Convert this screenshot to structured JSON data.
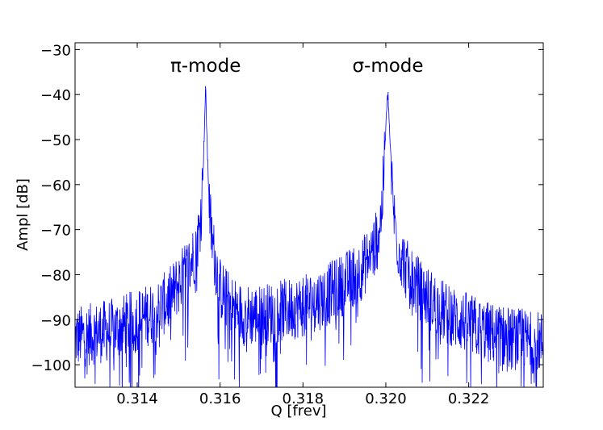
{
  "chart_data": {
    "type": "line",
    "title": "",
    "xlabel": "Q [frev]",
    "ylabel": "Ampl [dB]",
    "xlim": [
      0.3125,
      0.3238
    ],
    "ylim": [
      -105,
      -28.5
    ],
    "x_ticks": [
      0.314,
      0.316,
      0.318,
      0.32,
      0.322
    ],
    "x_tick_labels": [
      "0.314",
      "0.316",
      "0.318",
      "0.320",
      "0.322"
    ],
    "y_ticks": [
      -30,
      -40,
      -50,
      -60,
      -70,
      -80,
      -90,
      -100
    ],
    "y_tick_labels": [
      "−30",
      "−40",
      "−50",
      "−60",
      "−70",
      "−80",
      "−90",
      "−100"
    ],
    "grid": false,
    "legend": "none",
    "line_color": "#0000ff",
    "annotations": [
      {
        "text": "π-mode",
        "x": 0.31565,
        "y": -33.5
      },
      {
        "text": "σ-mode",
        "x": 0.32005,
        "y": -33.5
      }
    ],
    "series": [
      {
        "x": [
          0.3125,
          0.313,
          0.3135,
          0.314,
          0.3145,
          0.3148,
          0.315,
          0.3152,
          0.3154,
          0.3155,
          0.31555,
          0.3156,
          0.31565,
          0.3157,
          0.31575,
          0.3158,
          0.3159,
          0.316,
          0.3162,
          0.3164,
          0.3166,
          0.317,
          0.3175,
          0.318,
          0.3185,
          0.319,
          0.3194,
          0.3196,
          0.3198,
          0.3199,
          0.31995,
          0.32,
          0.32005,
          0.3201,
          0.32015,
          0.3202,
          0.3203,
          0.3205,
          0.3207,
          0.321,
          0.3215,
          0.322,
          0.3225,
          0.323,
          0.3235,
          0.3238
        ],
        "y": [
          -94,
          -93,
          -92,
          -90,
          -88,
          -85,
          -82,
          -79,
          -75,
          -70,
          -65,
          -54,
          -38.5,
          -55,
          -66,
          -72,
          -78,
          -83,
          -86,
          -88,
          -89,
          -89,
          -88,
          -87,
          -85,
          -82,
          -79,
          -76,
          -72,
          -66,
          -58,
          -47,
          -39.5,
          -50,
          -60,
          -67,
          -74,
          -79,
          -82,
          -85,
          -89,
          -91,
          -93,
          -94,
          -95,
          -95
        ]
      }
    ]
  }
}
